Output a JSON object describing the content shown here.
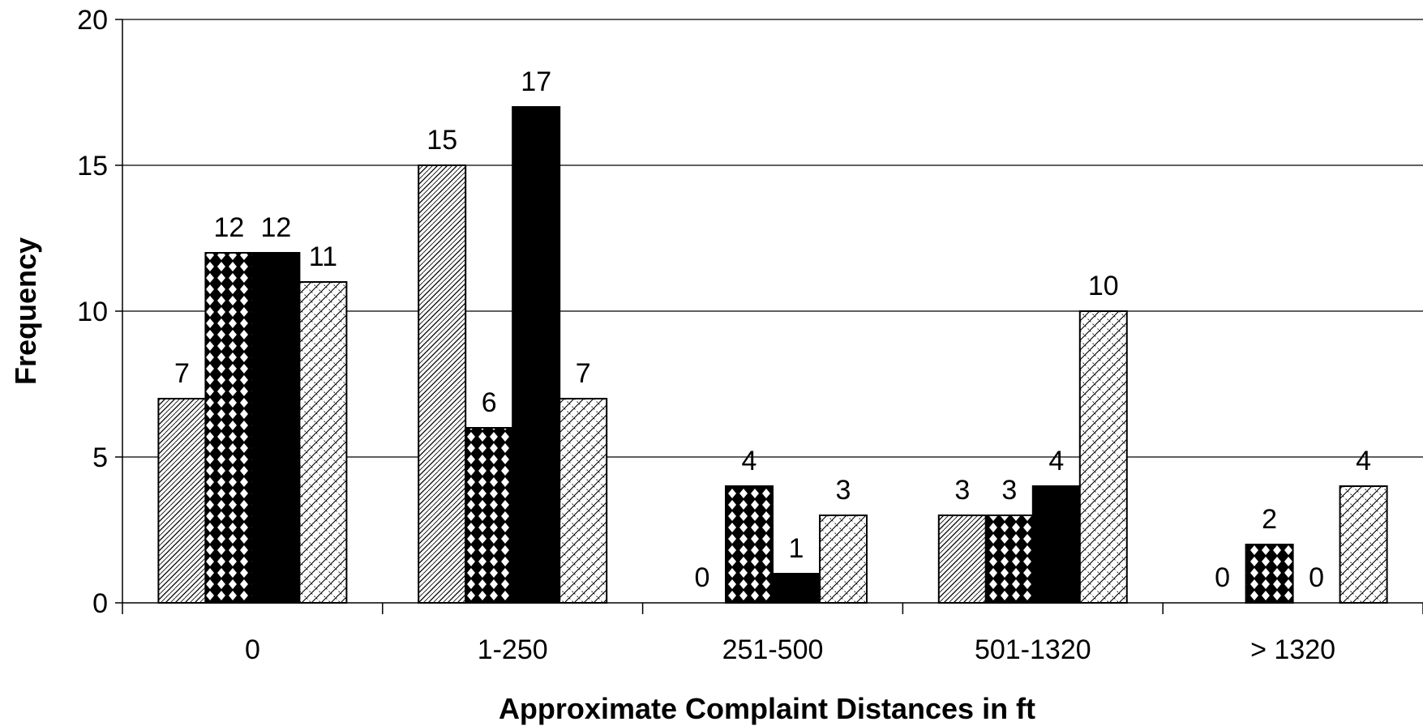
{
  "chart_data": {
    "type": "bar",
    "categories": [
      "0",
      "1-250",
      "251-500",
      "501-1320",
      "> 1320"
    ],
    "series": [
      {
        "values": [
          7,
          15,
          0,
          3,
          0
        ],
        "pattern": "diagonal-weave",
        "color": "#ffffff"
      },
      {
        "values": [
          12,
          6,
          4,
          3,
          2
        ],
        "pattern": "checker-diamond",
        "color": "#000000"
      },
      {
        "values": [
          12,
          17,
          1,
          4,
          0
        ],
        "pattern": "solid",
        "color": "#000000"
      },
      {
        "values": [
          11,
          7,
          3,
          10,
          4
        ],
        "pattern": "zigzag-weave",
        "color": "#ffffff"
      }
    ],
    "xlabel": "Approximate Complaint Distances in ft",
    "ylabel": "Frequency",
    "ylim": [
      0,
      20
    ],
    "yticks": [
      "0",
      "5",
      "10",
      "15",
      "20"
    ],
    "grid": true,
    "data_labels": true
  }
}
